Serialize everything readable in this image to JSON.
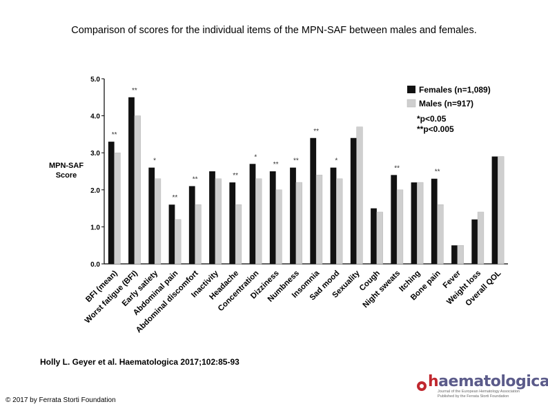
{
  "title": "Comparison of scores for the individual items of the MPN-SAF between males and females.",
  "citation": "Holly L. Geyer et al. Haematologica 2017;102:85-93",
  "copyright": "© 2017 by Ferrata Storti Foundation",
  "logo": {
    "word_h": "h",
    "word_rest": "aematologica",
    "sub_line1": "Journal of the European Hematology Association",
    "sub_line2": "Published by the Ferrata Storti Foundation"
  },
  "colors": {
    "females": "#111111",
    "males": "#cfcfcf"
  },
  "chart_data": {
    "type": "bar",
    "ylabel": "MPN-SAF\nScore",
    "ylim": [
      0,
      5
    ],
    "yticks": [
      "0.0",
      "1.0",
      "2.0",
      "3.0",
      "4.0",
      "5.0"
    ],
    "grid": false,
    "legend_position": "top-right",
    "legend_note_1": "*p<0.05",
    "legend_note_2": "**p<0.005",
    "categories": [
      "BFI (mean)",
      "Worst fatigue (BFI)",
      "Early satiety",
      "Abdominal pain",
      "Abdominal discomfort",
      "Inactivity",
      "Headache",
      "Concentration",
      "Dizziness",
      "Numbness",
      "Insomnia",
      "Sad mood",
      "Sexuality",
      "Cough",
      "Night sweats",
      "Itching",
      "Bone pain",
      "Fever",
      "Weight loss",
      "Overall QOL"
    ],
    "series": [
      {
        "name": "Females (n=1,089)",
        "values": [
          3.3,
          4.5,
          2.6,
          1.6,
          2.1,
          2.5,
          2.2,
          2.7,
          2.5,
          2.6,
          3.4,
          2.6,
          3.4,
          1.5,
          2.4,
          2.2,
          2.3,
          0.5,
          1.2,
          2.9
        ]
      },
      {
        "name": "Males (n=917)",
        "values": [
          3.0,
          4.0,
          2.3,
          1.2,
          1.6,
          2.3,
          1.6,
          2.3,
          2.0,
          2.2,
          2.4,
          2.3,
          3.7,
          1.4,
          2.0,
          2.2,
          1.6,
          0.5,
          1.4,
          2.9
        ]
      }
    ],
    "significance": [
      "**",
      "**",
      "*",
      "**",
      "**",
      "",
      "**",
      "*",
      "**",
      "**",
      "**",
      "*",
      "",
      "",
      "**",
      "",
      "**",
      "",
      "",
      ""
    ]
  }
}
